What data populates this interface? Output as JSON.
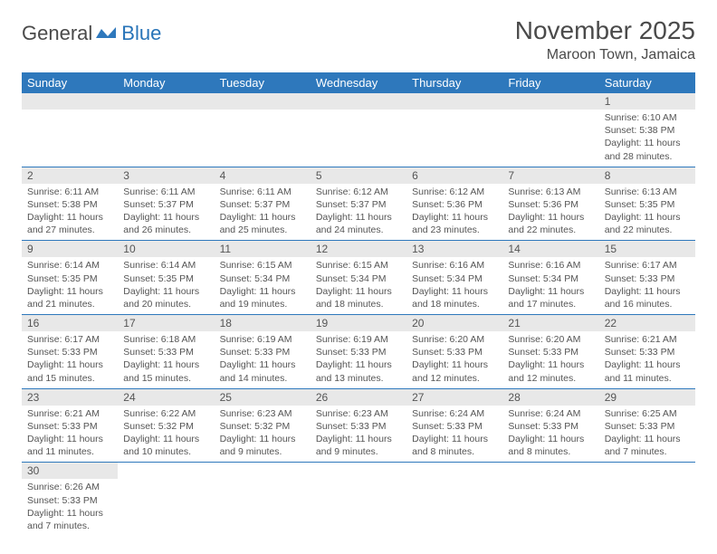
{
  "logo": {
    "part1": "General",
    "part2": "Blue"
  },
  "title": "November 2025",
  "location": "Maroon Town, Jamaica",
  "colors": {
    "header_bg": "#2e78bc",
    "header_text": "#ffffff",
    "daynum_bg": "#e8e8e8",
    "row_border": "#2e78bc",
    "text": "#555555",
    "logo_gray": "#4a4a4a",
    "logo_blue": "#2874b8"
  },
  "weekdays": [
    "Sunday",
    "Monday",
    "Tuesday",
    "Wednesday",
    "Thursday",
    "Friday",
    "Saturday"
  ],
  "weeks": [
    [
      null,
      null,
      null,
      null,
      null,
      null,
      {
        "n": "1",
        "sr": "Sunrise: 6:10 AM",
        "ss": "Sunset: 5:38 PM",
        "d1": "Daylight: 11 hours",
        "d2": "and 28 minutes."
      }
    ],
    [
      {
        "n": "2",
        "sr": "Sunrise: 6:11 AM",
        "ss": "Sunset: 5:38 PM",
        "d1": "Daylight: 11 hours",
        "d2": "and 27 minutes."
      },
      {
        "n": "3",
        "sr": "Sunrise: 6:11 AM",
        "ss": "Sunset: 5:37 PM",
        "d1": "Daylight: 11 hours",
        "d2": "and 26 minutes."
      },
      {
        "n": "4",
        "sr": "Sunrise: 6:11 AM",
        "ss": "Sunset: 5:37 PM",
        "d1": "Daylight: 11 hours",
        "d2": "and 25 minutes."
      },
      {
        "n": "5",
        "sr": "Sunrise: 6:12 AM",
        "ss": "Sunset: 5:37 PM",
        "d1": "Daylight: 11 hours",
        "d2": "and 24 minutes."
      },
      {
        "n": "6",
        "sr": "Sunrise: 6:12 AM",
        "ss": "Sunset: 5:36 PM",
        "d1": "Daylight: 11 hours",
        "d2": "and 23 minutes."
      },
      {
        "n": "7",
        "sr": "Sunrise: 6:13 AM",
        "ss": "Sunset: 5:36 PM",
        "d1": "Daylight: 11 hours",
        "d2": "and 22 minutes."
      },
      {
        "n": "8",
        "sr": "Sunrise: 6:13 AM",
        "ss": "Sunset: 5:35 PM",
        "d1": "Daylight: 11 hours",
        "d2": "and 22 minutes."
      }
    ],
    [
      {
        "n": "9",
        "sr": "Sunrise: 6:14 AM",
        "ss": "Sunset: 5:35 PM",
        "d1": "Daylight: 11 hours",
        "d2": "and 21 minutes."
      },
      {
        "n": "10",
        "sr": "Sunrise: 6:14 AM",
        "ss": "Sunset: 5:35 PM",
        "d1": "Daylight: 11 hours",
        "d2": "and 20 minutes."
      },
      {
        "n": "11",
        "sr": "Sunrise: 6:15 AM",
        "ss": "Sunset: 5:34 PM",
        "d1": "Daylight: 11 hours",
        "d2": "and 19 minutes."
      },
      {
        "n": "12",
        "sr": "Sunrise: 6:15 AM",
        "ss": "Sunset: 5:34 PM",
        "d1": "Daylight: 11 hours",
        "d2": "and 18 minutes."
      },
      {
        "n": "13",
        "sr": "Sunrise: 6:16 AM",
        "ss": "Sunset: 5:34 PM",
        "d1": "Daylight: 11 hours",
        "d2": "and 18 minutes."
      },
      {
        "n": "14",
        "sr": "Sunrise: 6:16 AM",
        "ss": "Sunset: 5:34 PM",
        "d1": "Daylight: 11 hours",
        "d2": "and 17 minutes."
      },
      {
        "n": "15",
        "sr": "Sunrise: 6:17 AM",
        "ss": "Sunset: 5:33 PM",
        "d1": "Daylight: 11 hours",
        "d2": "and 16 minutes."
      }
    ],
    [
      {
        "n": "16",
        "sr": "Sunrise: 6:17 AM",
        "ss": "Sunset: 5:33 PM",
        "d1": "Daylight: 11 hours",
        "d2": "and 15 minutes."
      },
      {
        "n": "17",
        "sr": "Sunrise: 6:18 AM",
        "ss": "Sunset: 5:33 PM",
        "d1": "Daylight: 11 hours",
        "d2": "and 15 minutes."
      },
      {
        "n": "18",
        "sr": "Sunrise: 6:19 AM",
        "ss": "Sunset: 5:33 PM",
        "d1": "Daylight: 11 hours",
        "d2": "and 14 minutes."
      },
      {
        "n": "19",
        "sr": "Sunrise: 6:19 AM",
        "ss": "Sunset: 5:33 PM",
        "d1": "Daylight: 11 hours",
        "d2": "and 13 minutes."
      },
      {
        "n": "20",
        "sr": "Sunrise: 6:20 AM",
        "ss": "Sunset: 5:33 PM",
        "d1": "Daylight: 11 hours",
        "d2": "and 12 minutes."
      },
      {
        "n": "21",
        "sr": "Sunrise: 6:20 AM",
        "ss": "Sunset: 5:33 PM",
        "d1": "Daylight: 11 hours",
        "d2": "and 12 minutes."
      },
      {
        "n": "22",
        "sr": "Sunrise: 6:21 AM",
        "ss": "Sunset: 5:33 PM",
        "d1": "Daylight: 11 hours",
        "d2": "and 11 minutes."
      }
    ],
    [
      {
        "n": "23",
        "sr": "Sunrise: 6:21 AM",
        "ss": "Sunset: 5:33 PM",
        "d1": "Daylight: 11 hours",
        "d2": "and 11 minutes."
      },
      {
        "n": "24",
        "sr": "Sunrise: 6:22 AM",
        "ss": "Sunset: 5:32 PM",
        "d1": "Daylight: 11 hours",
        "d2": "and 10 minutes."
      },
      {
        "n": "25",
        "sr": "Sunrise: 6:23 AM",
        "ss": "Sunset: 5:32 PM",
        "d1": "Daylight: 11 hours",
        "d2": "and 9 minutes."
      },
      {
        "n": "26",
        "sr": "Sunrise: 6:23 AM",
        "ss": "Sunset: 5:33 PM",
        "d1": "Daylight: 11 hours",
        "d2": "and 9 minutes."
      },
      {
        "n": "27",
        "sr": "Sunrise: 6:24 AM",
        "ss": "Sunset: 5:33 PM",
        "d1": "Daylight: 11 hours",
        "d2": "and 8 minutes."
      },
      {
        "n": "28",
        "sr": "Sunrise: 6:24 AM",
        "ss": "Sunset: 5:33 PM",
        "d1": "Daylight: 11 hours",
        "d2": "and 8 minutes."
      },
      {
        "n": "29",
        "sr": "Sunrise: 6:25 AM",
        "ss": "Sunset: 5:33 PM",
        "d1": "Daylight: 11 hours",
        "d2": "and 7 minutes."
      }
    ],
    [
      {
        "n": "30",
        "sr": "Sunrise: 6:26 AM",
        "ss": "Sunset: 5:33 PM",
        "d1": "Daylight: 11 hours",
        "d2": "and 7 minutes."
      },
      null,
      null,
      null,
      null,
      null,
      null
    ]
  ]
}
